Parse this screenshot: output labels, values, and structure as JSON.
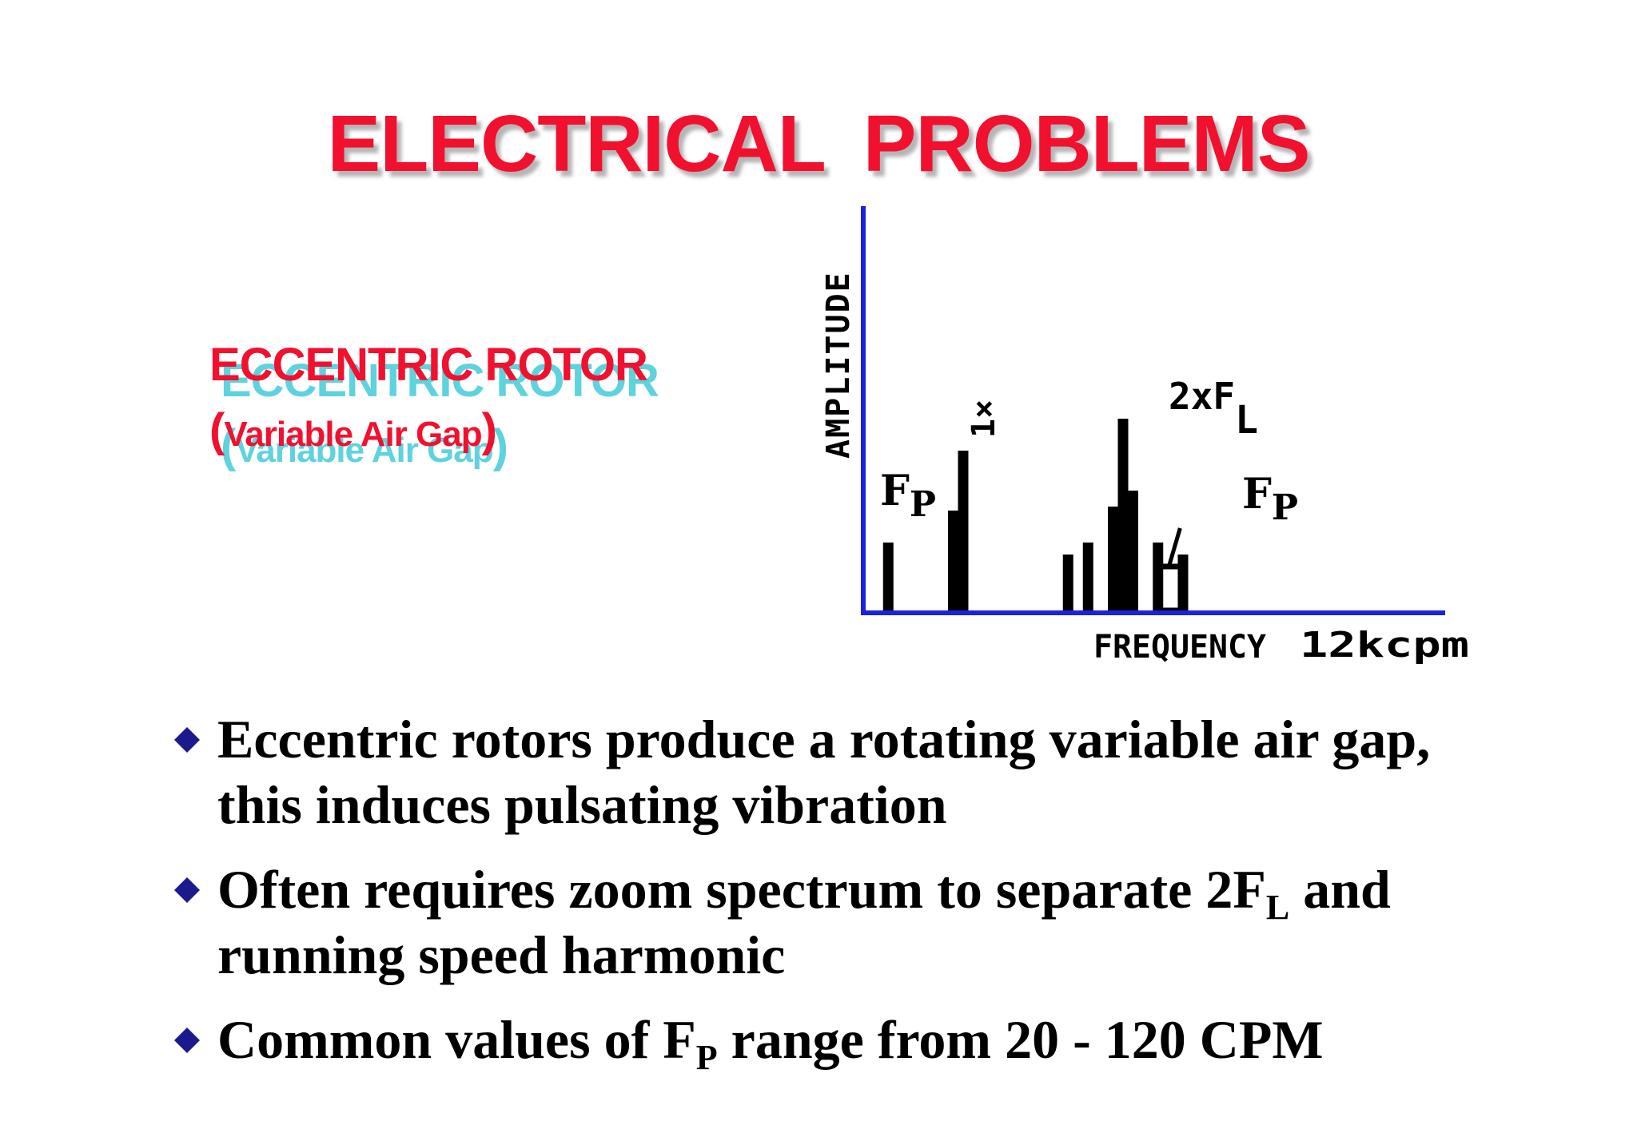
{
  "slide": {
    "title": "ELECTRICAL  PROBLEMS",
    "subtitle": {
      "line1": "ECCENTRIC ROTOR",
      "line2_open": "(",
      "line2_text": "Variable Air Gap",
      "line2_close": ")"
    },
    "colors": {
      "title": "#f2102f",
      "subtitle_shadow": "#5ed3de",
      "axes": "#1a22e0",
      "bullet_marker": "#1a1a8c"
    }
  },
  "chart_data": {
    "type": "bar",
    "ylabel": "AMPLITUDE",
    "xlabel": "FREQUENCY",
    "x_end_label": "12kcpm",
    "annotations": {
      "fp_left": {
        "main": "F",
        "sub": "P"
      },
      "one_x": "1×",
      "two_fl": {
        "main": "2xF",
        "sub": "L"
      },
      "fp_right": {
        "main": "F",
        "sub": "P"
      }
    },
    "x_unit": "relative position along 0–12 kcpm axis",
    "amplitude_unit": "relative (0–1)",
    "bars": [
      {
        "x": 0.5,
        "amplitude": 0.17,
        "label": "Fp"
      },
      {
        "x": 1.8,
        "amplitude": 0.25
      },
      {
        "x": 2.0,
        "amplitude": 0.4,
        "label": "1x"
      },
      {
        "x": 4.1,
        "amplitude": 0.14
      },
      {
        "x": 4.5,
        "amplitude": 0.17
      },
      {
        "x": 5.0,
        "amplitude": 0.26
      },
      {
        "x": 5.2,
        "amplitude": 0.48,
        "label": "2xFL"
      },
      {
        "x": 5.4,
        "amplitude": 0.3
      },
      {
        "x": 5.9,
        "amplitude": 0.17
      },
      {
        "x": 6.4,
        "amplitude": 0.14
      }
    ],
    "sideband_box": {
      "x_from": 5.9,
      "x_to": 6.4,
      "amplitude": 0.11
    }
  },
  "bullets": [
    {
      "line1": "Eccentric rotors produce a rotating variable air gap,",
      "line2": "this induces pulsating vibration"
    },
    {
      "line1_pre": "Often requires  zoom spectrum to separate 2F",
      "line1_sub": "L",
      "line1_post": " and",
      "line2": "running speed harmonic"
    },
    {
      "line1_pre": "Common values of F",
      "line1_sub": "P",
      "line1_post": " range from 20 - 120 CPM"
    }
  ]
}
